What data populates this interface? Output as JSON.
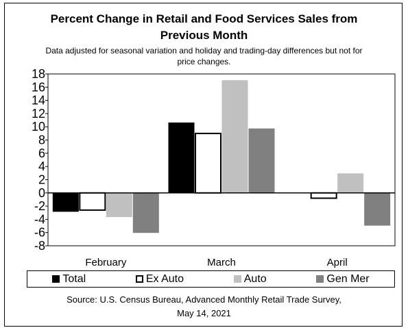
{
  "header": {
    "title_line1": "Percent Change in Retail and Food Services Sales from",
    "title_line2": "Previous Month",
    "subtitle_line1": "Data adjusted for seasonal variation and holiday and trading-day differences but not for",
    "subtitle_line2": "price changes."
  },
  "chart_data": {
    "type": "bar",
    "categories": [
      "February",
      "March",
      "April"
    ],
    "series": [
      {
        "name": "Total",
        "values": [
          -2.8,
          10.6,
          0.0
        ],
        "color": "#000000",
        "border": "#000000"
      },
      {
        "name": "Ex Auto",
        "values": [
          -2.6,
          9.0,
          -0.8
        ],
        "color": "#ffffff",
        "border": "#000000"
      },
      {
        "name": "Auto",
        "values": [
          -3.6,
          17.0,
          2.9
        ],
        "color": "#c0c0c0",
        "border": "#c0c0c0"
      },
      {
        "name": "Gen Mer",
        "values": [
          -6.0,
          9.7,
          -4.9
        ],
        "color": "#808080",
        "border": "#808080"
      }
    ],
    "ylim": [
      -8,
      18
    ],
    "yticks": [
      -8,
      -6,
      -4,
      -2,
      0,
      2,
      4,
      6,
      8,
      10,
      12,
      14,
      16,
      18
    ],
    "ytick_labels": [
      "-8",
      "-6",
      "-4",
      "-2",
      "0",
      "2",
      "4",
      "6",
      "8",
      "10",
      "12",
      "14",
      "16",
      "18"
    ],
    "grid": false,
    "legend_position": "bottom"
  },
  "legend": {
    "items": [
      "Total",
      "Ex Auto",
      "Auto",
      "Gen Mer"
    ]
  },
  "footer": {
    "source_line1": "Source: U.S. Census Bureau, Advanced Monthly Retail Trade Survey,",
    "source_line2": "May 14, 2021"
  }
}
